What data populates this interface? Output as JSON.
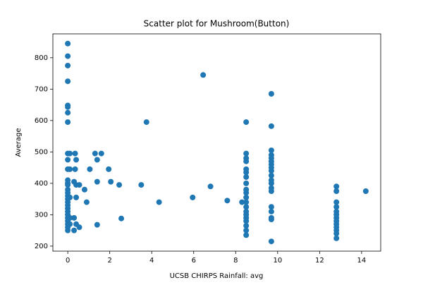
{
  "chart_data": {
    "type": "scatter",
    "title": "Scatter plot for Mushroom(Button)",
    "x_label": "UCSB CHIRPS Rainfall: avg",
    "y_label": "Average",
    "color": "#1f77b4",
    "x": [
      0,
      0,
      0,
      0,
      0,
      0,
      0,
      0,
      0,
      0,
      0,
      0,
      0,
      0,
      0,
      0,
      0,
      0,
      0,
      0,
      0,
      0,
      0,
      0,
      0,
      0,
      0,
      0,
      0.1,
      0.1,
      0.1,
      0.1,
      0.1,
      0.35,
      0.4,
      0.35,
      0.3,
      0.4,
      0.4,
      0.3,
      0.4,
      0.3,
      0.55,
      0.55,
      0.8,
      0.9,
      1.05,
      1.3,
      1.4,
      1.4,
      1.4,
      1.6,
      1.95,
      2.05,
      2.45,
      2.55,
      3.5,
      3.75,
      4.35,
      5.95,
      6.45,
      6.8,
      7.6,
      8.3,
      8.5,
      8.5,
      8.5,
      8.5,
      8.5,
      8.5,
      8.5,
      8.5,
      8.5,
      8.5,
      8.5,
      8.5,
      8.5,
      8.5,
      8.5,
      8.5,
      8.5,
      8.5,
      8.5,
      8.5,
      9.7,
      9.7,
      9.7,
      9.7,
      9.7,
      9.7,
      9.7,
      9.7,
      9.7,
      9.7,
      9.7,
      9.7,
      9.7,
      9.7,
      9.7,
      9.7,
      9.7,
      9.7,
      9.7,
      12.8,
      12.8,
      12.8,
      12.8,
      12.8,
      12.8,
      12.8,
      12.8,
      12.8,
      12.8,
      12.8,
      12.8,
      12.8,
      14.2
    ],
    "values": [
      845,
      805,
      775,
      725,
      648,
      643,
      625,
      595,
      495,
      475,
      445,
      410,
      400,
      395,
      380,
      370,
      360,
      350,
      340,
      330,
      320,
      310,
      300,
      290,
      280,
      270,
      260,
      250,
      495,
      445,
      355,
      290,
      270,
      495,
      475,
      445,
      405,
      395,
      355,
      290,
      270,
      250,
      395,
      260,
      380,
      340,
      445,
      495,
      475,
      405,
      268,
      495,
      445,
      405,
      395,
      288,
      395,
      595,
      340,
      355,
      745,
      390,
      345,
      340,
      595,
      495,
      480,
      470,
      445,
      435,
      420,
      400,
      380,
      370,
      355,
      340,
      325,
      310,
      300,
      290,
      280,
      265,
      250,
      235,
      685,
      582,
      505,
      490,
      480,
      470,
      460,
      450,
      440,
      425,
      410,
      400,
      385,
      375,
      325,
      310,
      290,
      285,
      215,
      390,
      375,
      340,
      325,
      310,
      300,
      290,
      280,
      270,
      260,
      250,
      240,
      225,
      375
    ],
    "xlim": [
      -0.71,
      14.91
    ],
    "ylim": [
      184,
      876
    ],
    "xticks": [
      0,
      2,
      4,
      6,
      8,
      10,
      12,
      14
    ],
    "yticks": [
      200,
      300,
      400,
      500,
      600,
      700,
      800
    ]
  }
}
